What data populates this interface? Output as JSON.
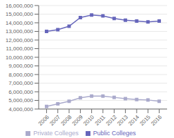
{
  "chart_data": {
    "type": "line",
    "x": [
      2006,
      2007,
      2008,
      2009,
      2010,
      2011,
      2012,
      2013,
      2014,
      2015,
      2016
    ],
    "series": [
      {
        "name": "Public Colleges",
        "color": "#6666bb",
        "marker": "square",
        "values": [
          13000000,
          13200000,
          13600000,
          14600000,
          14900000,
          14800000,
          14500000,
          14300000,
          14200000,
          14100000,
          14200000
        ]
      },
      {
        "name": "Private Colleges",
        "color": "#aaaacc",
        "marker": "square",
        "values": [
          4300000,
          4600000,
          4900000,
          5300000,
          5500000,
          5500000,
          5350000,
          5200000,
          5100000,
          5050000,
          4900000
        ]
      }
    ],
    "xlim": [
      2005.3,
      2016.7
    ],
    "xticks": [
      2006,
      2007,
      2008,
      2009,
      2010,
      2011,
      2012,
      2013,
      2014,
      2015,
      2016
    ],
    "ylim": [
      4000000,
      16000000
    ],
    "yticks": [
      {
        "value": 4000000,
        "label": "4,000,000"
      },
      {
        "value": 5000000,
        "label": "5,000,000"
      },
      {
        "value": 6000000,
        "label": "6,000,000"
      },
      {
        "value": 7000000,
        "label": "7,000,000"
      },
      {
        "value": 8000000,
        "label": "8,000,000"
      },
      {
        "value": 9000000,
        "label": "9,000,000"
      },
      {
        "value": 10000000,
        "label": "10,000,000"
      },
      {
        "value": 11000000,
        "label": "11,000,000"
      },
      {
        "value": 12000000,
        "label": "12,000,000"
      },
      {
        "value": 13000000,
        "label": "13,000,000"
      },
      {
        "value": 14000000,
        "label": "14,000,000"
      },
      {
        "value": 15000000,
        "label": "15,000,000"
      },
      {
        "value": 16000000,
        "label": "16,000,000"
      }
    ],
    "grid": true,
    "legend": "bottom"
  }
}
